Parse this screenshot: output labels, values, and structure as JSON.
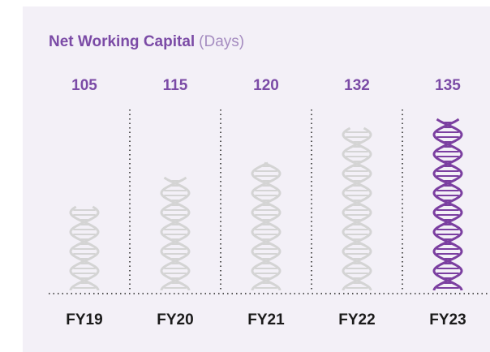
{
  "chart_data": {
    "type": "pictograph",
    "title": "Net Working Capital",
    "subtitle": "(Days)",
    "categories": [
      "FY19",
      "FY20",
      "FY21",
      "FY22",
      "FY23"
    ],
    "values": [
      105,
      115,
      120,
      132,
      135
    ],
    "colors": [
      "#d4d4d4",
      "#d4d4d4",
      "#d4d4d4",
      "#d4d4d4",
      "#7b3fa0"
    ],
    "label_color": "#7b4ba6",
    "ylim": [
      76,
      135
    ]
  }
}
